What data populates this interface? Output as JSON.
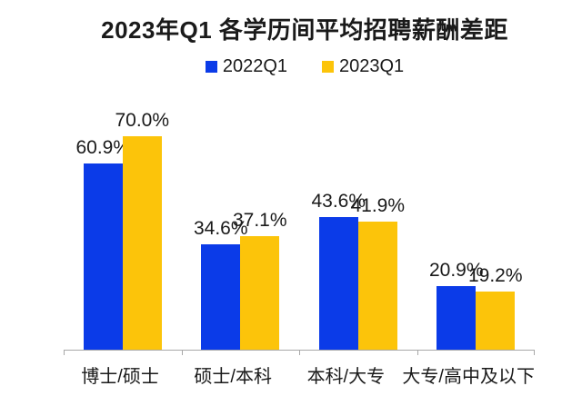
{
  "title": "2023年Q1 各学历间平均招聘薪酬差距",
  "legend": [
    {
      "label": "2022Q1",
      "color": "#0b3be8"
    },
    {
      "label": "2023Q1",
      "color": "#fcc40a"
    }
  ],
  "colors": {
    "series_2022": "#0b3be8",
    "series_2023": "#fcc40a",
    "axis": "#a8a8a8",
    "text": "#1a1a1a",
    "background": "#ffffff"
  },
  "chart_data": {
    "type": "bar",
    "title": "2023年Q1 各学历间平均招聘薪酬差距",
    "categories": [
      "博士/硕士",
      "硕士/本科",
      "本科/大专",
      "大专/高中及以下"
    ],
    "series": [
      {
        "name": "2022Q1",
        "color": "#0b3be8",
        "values": [
          60.9,
          34.6,
          43.6,
          20.9
        ],
        "labels": [
          "60.9%",
          "34.6%",
          "43.6%",
          "20.9%"
        ]
      },
      {
        "name": "2023Q1",
        "color": "#fcc40a",
        "values": [
          70.0,
          37.1,
          41.9,
          19.2
        ],
        "labels": [
          "70.0%",
          "37.1%",
          "41.9%",
          "19.2%"
        ]
      }
    ],
    "value_suffix": "%",
    "xlabel": "",
    "ylabel": "",
    "ylim": [
      0,
      75
    ],
    "grid": false,
    "y_axis_shown": false,
    "legend_position": "top",
    "data_labels_shown": true
  }
}
